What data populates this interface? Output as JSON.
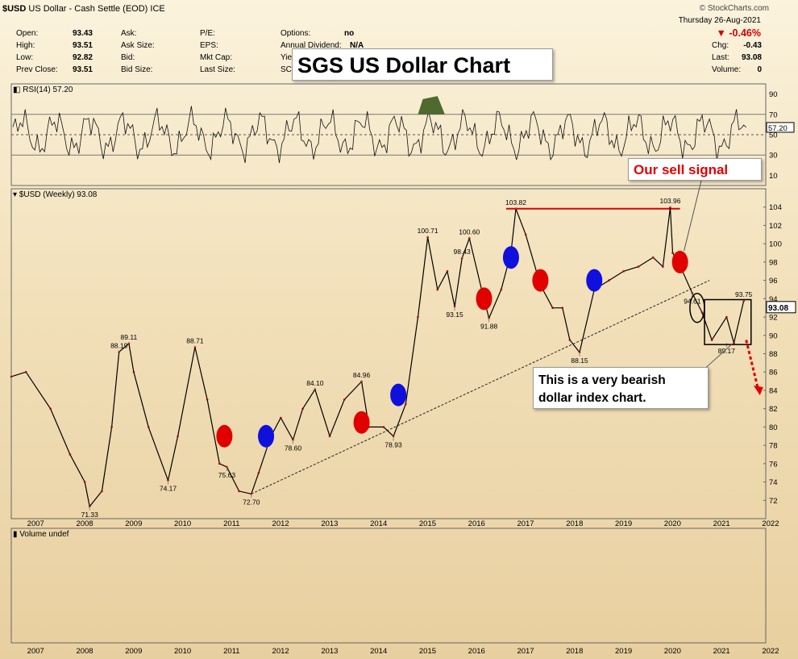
{
  "header": {
    "symbol": "$USD",
    "description": "US Dollar - Cash Settle (EOD)",
    "exchange": "ICE",
    "watermark": "© StockCharts.com",
    "date": "Thursday   26-Aug-2021",
    "change_pct": "▼ -0.46%",
    "change_color": "#d00000"
  },
  "quote": {
    "open_label": "Open:",
    "open": "93.43",
    "high_label": "High:",
    "high": "93.51",
    "low_label": "Low:",
    "low": "92.82",
    "prev_label": "Prev Close:",
    "prev": "93.51",
    "ask_label": "Ask:",
    "asksize_label": "Ask Size:",
    "bid_label": "Bid:",
    "bidsize_label": "Bid Size:",
    "pe_label": "P/E:",
    "eps_label": "EPS:",
    "mktcap_label": "Mkt Cap:",
    "lastsize_label": "Last Size:",
    "options_label": "Options:",
    "options": "no",
    "div_label": "Annual Dividend:",
    "div": "N/A",
    "yield_frag": "Yie",
    "sc_frag": "SC",
    "chg_label": "Chg:",
    "chg": "-0.43",
    "last_label": "Last:",
    "last": "93.08",
    "vol_label": "Volume:",
    "vol": "0"
  },
  "headline": "SGS US Dollar Chart",
  "sell_note": "Our sell signal",
  "bear_note": "This is a very bearish\ndollar index chart.",
  "rsi_panel": {
    "label": "RSI(14) 57.20",
    "last_value": "57.20",
    "levels": [
      10,
      30,
      50,
      70,
      90
    ],
    "overbought": 70,
    "oversold": 30,
    "ob_color": "#4e6a2e",
    "os_color": "#8a6a55"
  },
  "price_panel": {
    "label": "$USD (Weekly) 93.08",
    "last_value": "93.08",
    "y_ticks": [
      72,
      74,
      76,
      78,
      80,
      82,
      84,
      86,
      88,
      90,
      92,
      94,
      96,
      98,
      100,
      102,
      104
    ]
  },
  "volume_panel": {
    "label": "Volume undef"
  },
  "x_years": [
    "2007",
    "2008",
    "2009",
    "2010",
    "2011",
    "2012",
    "2013",
    "2014",
    "2015",
    "2016",
    "2017",
    "2018",
    "2019",
    "2020",
    "2021",
    "2022"
  ],
  "chart_data": {
    "type": "line",
    "title": "SGS US Dollar Chart",
    "series": [
      {
        "name": "$USD (Weekly)",
        "x": [
          2006.7,
          2007.0,
          2007.5,
          2007.9,
          2008.2,
          2008.3,
          2008.55,
          2008.75,
          2008.9,
          2009.1,
          2009.2,
          2009.5,
          2009.9,
          2010.1,
          2010.45,
          2010.7,
          2010.95,
          2011.1,
          2011.35,
          2011.6,
          2011.75,
          2012.0,
          2012.2,
          2012.45,
          2012.65,
          2012.9,
          2013.2,
          2013.5,
          2013.85,
          2014.0,
          2014.3,
          2014.5,
          2014.75,
          2015.0,
          2015.2,
          2015.4,
          2015.6,
          2015.75,
          2015.9,
          2016.05,
          2016.3,
          2016.45,
          2016.7,
          2016.9,
          2017.0,
          2017.2,
          2017.5,
          2017.75,
          2017.95,
          2018.1,
          2018.3,
          2018.6,
          2018.9,
          2019.2,
          2019.5,
          2019.8,
          2020.0,
          2020.15,
          2020.2,
          2020.25,
          2020.4,
          2020.6,
          2020.8,
          2021.0,
          2021.3,
          2021.45,
          2021.65
        ],
        "values": [
          85.5,
          86,
          82,
          77,
          74,
          71.33,
          73,
          80,
          88.19,
          89.11,
          86,
          80,
          74.17,
          79,
          88.71,
          83,
          76,
          75.63,
          73,
          72.7,
          75,
          79,
          81,
          78.6,
          82,
          84.1,
          79,
          83,
          84.96,
          80,
          80,
          79,
          82.5,
          92,
          100.71,
          95,
          97,
          93.15,
          98.43,
          100.6,
          95,
          91.88,
          95,
          99,
          103.82,
          101,
          95.5,
          93,
          93,
          89.5,
          88.15,
          95,
          96,
          97,
          97.5,
          98.5,
          97.5,
          103.96,
          99,
          98.5,
          97,
          94.61,
          92.5,
          89.5,
          92,
          89.17,
          93.75
        ]
      }
    ],
    "annotations": [
      {
        "x": 2008.3,
        "y": 71.33,
        "label": "71.33"
      },
      {
        "x": 2008.9,
        "y": 88.19,
        "label": "88.19"
      },
      {
        "x": 2009.1,
        "y": 89.11,
        "label": "89.11"
      },
      {
        "x": 2009.9,
        "y": 74.17,
        "label": "74.17"
      },
      {
        "x": 2010.45,
        "y": 88.71,
        "label": "88.71"
      },
      {
        "x": 2011.1,
        "y": 75.63,
        "label": "75.63"
      },
      {
        "x": 2011.6,
        "y": 72.7,
        "label": "72.70"
      },
      {
        "x": 2012.45,
        "y": 78.6,
        "label": "78.60"
      },
      {
        "x": 2012.9,
        "y": 84.1,
        "label": "84.10"
      },
      {
        "x": 2013.85,
        "y": 84.96,
        "label": "84.96"
      },
      {
        "x": 2014.5,
        "y": 78.93,
        "label": "78.93"
      },
      {
        "x": 2015.2,
        "y": 100.71,
        "label": "100.71"
      },
      {
        "x": 2015.75,
        "y": 93.15,
        "label": "93.15"
      },
      {
        "x": 2015.9,
        "y": 98.43,
        "label": "98.43"
      },
      {
        "x": 2016.05,
        "y": 100.6,
        "label": "100.60"
      },
      {
        "x": 2016.45,
        "y": 91.88,
        "label": "91.88"
      },
      {
        "x": 2017.0,
        "y": 103.82,
        "label": "103.82"
      },
      {
        "x": 2018.3,
        "y": 88.15,
        "label": "88.15"
      },
      {
        "x": 2020.15,
        "y": 103.96,
        "label": "103.96"
      },
      {
        "x": 2020.6,
        "y": 94.61,
        "label": "94.61"
      },
      {
        "x": 2021.3,
        "y": 89.17,
        "label": "89.17"
      },
      {
        "x": 2021.65,
        "y": 93.75,
        "label": "93.75"
      }
    ],
    "signals": [
      {
        "x": 2011.05,
        "y": 79.0,
        "type": "sell",
        "color": "#e00000"
      },
      {
        "x": 2011.9,
        "y": 79.0,
        "type": "buy",
        "color": "#1010dd"
      },
      {
        "x": 2013.85,
        "y": 80.5,
        "type": "sell",
        "color": "#e00000"
      },
      {
        "x": 2014.6,
        "y": 83.5,
        "type": "buy",
        "color": "#1010dd"
      },
      {
        "x": 2016.35,
        "y": 94.0,
        "type": "sell",
        "color": "#e00000"
      },
      {
        "x": 2016.9,
        "y": 98.5,
        "type": "buy",
        "color": "#1010dd"
      },
      {
        "x": 2017.5,
        "y": 96.0,
        "type": "sell",
        "color": "#e00000"
      },
      {
        "x": 2018.6,
        "y": 96.0,
        "type": "buy",
        "color": "#1010dd"
      },
      {
        "x": 2020.35,
        "y": 98.0,
        "type": "sell",
        "color": "#e00000"
      }
    ],
    "resistance_line": {
      "from": [
        2016.8,
        103.82
      ],
      "to": [
        2020.35,
        103.82
      ]
    },
    "trend_line": {
      "from": [
        2011.6,
        72.7
      ],
      "to": [
        2020.95,
        96.0
      ]
    },
    "ylim": [
      70,
      106
    ],
    "xlim": [
      2006.7,
      2022.1
    ]
  }
}
